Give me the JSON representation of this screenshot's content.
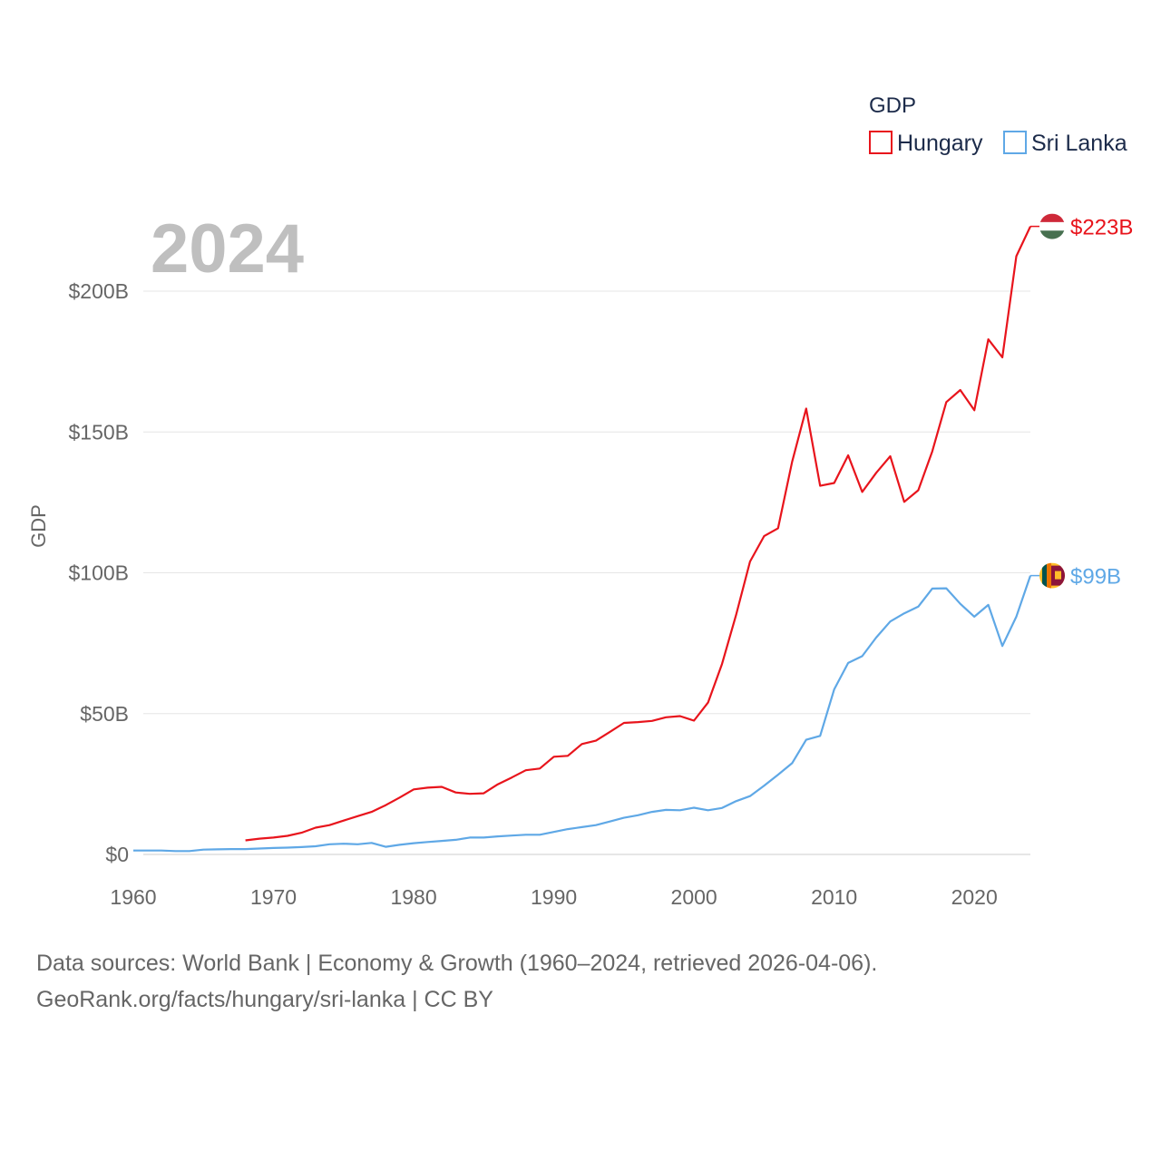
{
  "chart_data": {
    "type": "line",
    "title": "GDP",
    "ylabel": "GDP",
    "xlabel": "",
    "year_label": "2024",
    "xlim": [
      1960,
      2024
    ],
    "ylim": [
      0,
      223
    ],
    "x_ticks": [
      1960,
      1970,
      1980,
      1990,
      2000,
      2010,
      2020
    ],
    "x_tick_labels": [
      "1960",
      "1970",
      "1980",
      "1990",
      "2000",
      "2010",
      "2020"
    ],
    "y_ticks": [
      0,
      50,
      100,
      150,
      200
    ],
    "y_tick_labels": [
      "$0",
      "$50B",
      "$100B",
      "$150B",
      "$200B"
    ],
    "legend_title": "GDP",
    "legend_position": "top-right",
    "grid": true,
    "series": [
      {
        "name": "Hungary",
        "color": "#e8141c",
        "end_label": "$223B",
        "flag_icon": "hungary-flag-icon",
        "x": [
          1968,
          1969,
          1970,
          1971,
          1972,
          1973,
          1974,
          1975,
          1976,
          1977,
          1978,
          1979,
          1980,
          1981,
          1982,
          1983,
          1984,
          1985,
          1986,
          1987,
          1988,
          1989,
          1990,
          1991,
          1992,
          1993,
          1994,
          1995,
          1996,
          1997,
          1998,
          1999,
          2000,
          2001,
          2002,
          2003,
          2004,
          2005,
          2006,
          2007,
          2008,
          2009,
          2010,
          2011,
          2012,
          2013,
          2014,
          2015,
          2016,
          2017,
          2018,
          2019,
          2020,
          2021,
          2022,
          2023,
          2024
        ],
        "values": [
          5.0,
          5.6,
          6.0,
          6.6,
          7.7,
          9.5,
          10.4,
          12.0,
          13.6,
          15.1,
          17.5,
          20.2,
          23.1,
          23.7,
          24.0,
          22.0,
          21.5,
          21.7,
          24.9,
          27.3,
          29.9,
          30.5,
          34.7,
          35.0,
          39.2,
          40.4,
          43.5,
          46.7,
          47.0,
          47.4,
          48.7,
          49.1,
          47.5,
          53.9,
          67.6,
          85.0,
          104.0,
          113.0,
          115.8,
          139.4,
          158.3,
          130.9,
          131.9,
          141.7,
          128.7,
          135.5,
          141.4,
          125.2,
          129.3,
          143.1,
          160.6,
          164.9,
          157.7,
          182.9,
          176.5,
          212.4,
          223.0
        ]
      },
      {
        "name": "Sri Lanka",
        "color": "#5fa8e6",
        "end_label": "$99B",
        "flag_icon": "sri-lanka-flag-icon",
        "x": [
          1960,
          1961,
          1962,
          1963,
          1964,
          1965,
          1966,
          1967,
          1968,
          1969,
          1970,
          1971,
          1972,
          1973,
          1974,
          1975,
          1976,
          1977,
          1978,
          1979,
          1980,
          1981,
          1982,
          1983,
          1984,
          1985,
          1986,
          1987,
          1988,
          1989,
          1990,
          1991,
          1992,
          1993,
          1994,
          1995,
          1996,
          1997,
          1998,
          1999,
          2000,
          2001,
          2002,
          2003,
          2004,
          2005,
          2006,
          2007,
          2008,
          2009,
          2010,
          2011,
          2012,
          2013,
          2014,
          2015,
          2016,
          2017,
          2018,
          2019,
          2020,
          2021,
          2022,
          2023,
          2024
        ],
        "values": [
          1.4,
          1.4,
          1.4,
          1.2,
          1.2,
          1.7,
          1.8,
          1.9,
          1.9,
          2.1,
          2.3,
          2.4,
          2.6,
          2.9,
          3.6,
          3.8,
          3.6,
          4.1,
          2.7,
          3.4,
          4.0,
          4.4,
          4.8,
          5.2,
          6.0,
          6.0,
          6.4,
          6.7,
          7.0,
          7.0,
          8.0,
          9.0,
          9.7,
          10.4,
          11.7,
          13.0,
          13.9,
          15.1,
          15.8,
          15.7,
          16.6,
          15.7,
          16.5,
          18.9,
          20.7,
          24.4,
          28.3,
          32.4,
          40.7,
          42.1,
          58.6,
          68.0,
          70.4,
          77.0,
          82.7,
          85.6,
          88.0,
          94.4,
          94.5,
          89.0,
          84.4,
          88.6,
          74.0,
          84.4,
          99.0
        ]
      }
    ]
  },
  "footer": {
    "line1": "Data sources: World Bank | Economy & Growth (1960–2024, retrieved 2026-04-06).",
    "line2": "GeoRank.org/facts/hungary/sri-lanka | CC BY"
  }
}
